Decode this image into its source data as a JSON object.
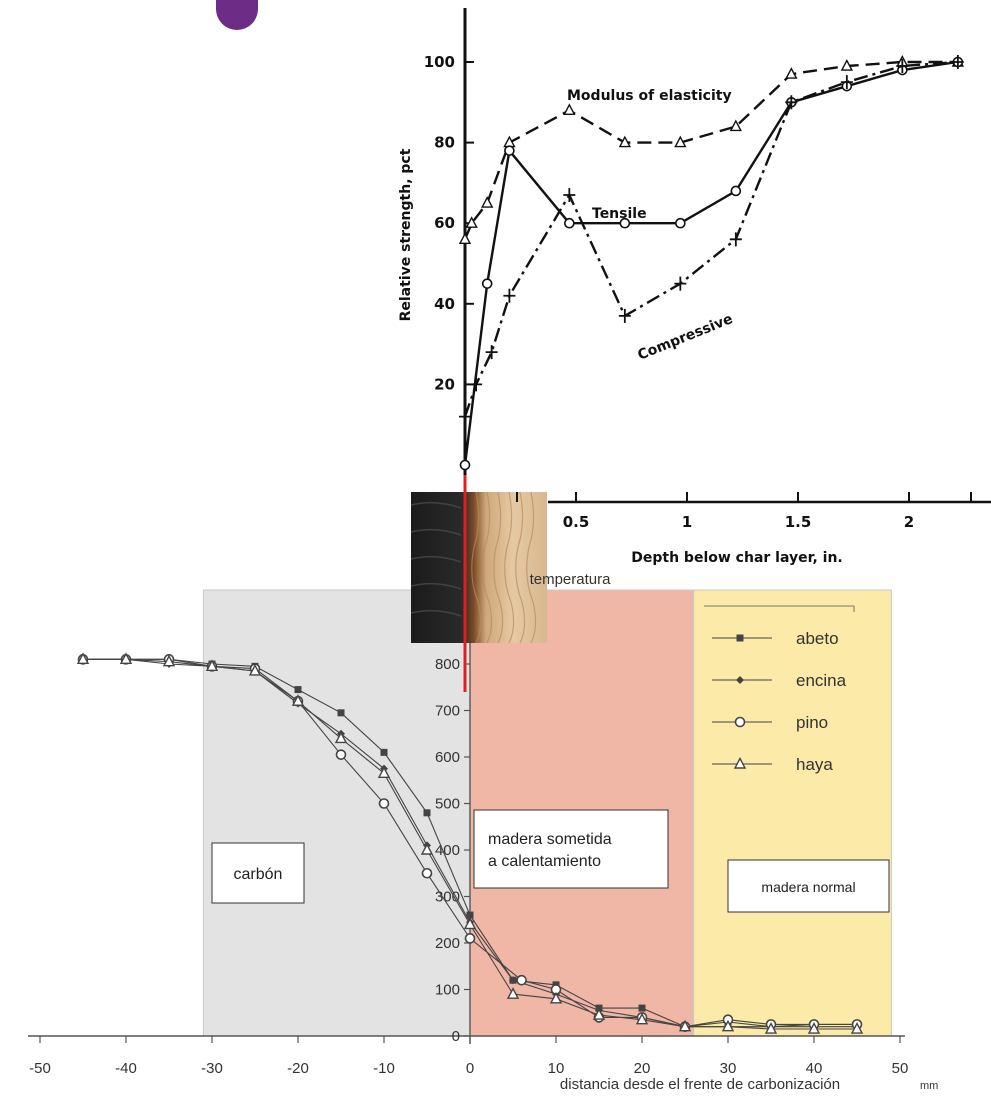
{
  "chart_data": [
    {
      "type": "line",
      "ylabel": "Relative strength, pct",
      "xlabel": "Depth below char layer, in.",
      "x_ticks": [
        "0.5",
        "1",
        "1.5",
        "2"
      ],
      "y_ticks": [
        "20",
        "40",
        "60",
        "80",
        "100"
      ],
      "xlim": [
        0,
        2.3
      ],
      "ylim": [
        0,
        110
      ],
      "grid": false,
      "colors": {
        "line": "#111111"
      },
      "series": [
        {
          "name": "Modulus of elasticity",
          "marker": "triangle",
          "dash": "dashed",
          "x": [
            0,
            0.03,
            0.1,
            0.2,
            0.47,
            0.72,
            0.97,
            1.22,
            1.47,
            1.72,
            1.97,
            2.22
          ],
          "y": [
            56,
            60,
            65,
            80,
            88,
            80,
            80,
            84,
            97,
            99,
            100,
            100
          ]
        },
        {
          "name": "Tensile",
          "marker": "circle",
          "dash": "solid",
          "x": [
            0,
            0.1,
            0.2,
            0.47,
            0.72,
            0.97,
            1.22,
            1.47,
            1.72,
            1.97,
            2.22
          ],
          "y": [
            0,
            45,
            78,
            60,
            60,
            60,
            68,
            90,
            94,
            98,
            100
          ]
        },
        {
          "name": "Compressive",
          "marker": "plus",
          "dash": "dashdot",
          "x": [
            0,
            0.05,
            0.12,
            0.2,
            0.47,
            0.72,
            0.97,
            1.22,
            1.47,
            1.72,
            1.97,
            2.22
          ],
          "y": [
            12,
            20,
            28,
            42,
            67,
            37,
            45,
            56,
            90,
            95,
            99,
            100
          ]
        }
      ]
    },
    {
      "type": "line",
      "title": "temperatura",
      "xlabel": "distancia desde el frente de carbonización",
      "xunit": "mm",
      "x_ticks": [
        "-50",
        "-40",
        "-30",
        "-20",
        "-10",
        "0",
        "10",
        "20",
        "30",
        "40",
        "50"
      ],
      "y_ticks": [
        "0",
        "100",
        "200",
        "300",
        "400",
        "500",
        "600",
        "700",
        "800"
      ],
      "xlim": [
        -50,
        50
      ],
      "ylim": [
        0,
        850
      ],
      "legend_position": "top-right",
      "regions": [
        {
          "label": "carbón",
          "x_range": [
            -31,
            0
          ],
          "color": "#e3e3e3"
        },
        {
          "label": "madera sometida\na calentamiento",
          "x_range": [
            0,
            26
          ],
          "color": "#f0b6a6"
        },
        {
          "label": "madera normal",
          "x_range": [
            26,
            49
          ],
          "color": "#fbeaa8"
        }
      ],
      "colors": {
        "line": "#444444",
        "burn_front": "#e02020"
      },
      "series": [
        {
          "name": "abeto",
          "marker": "square",
          "x": [
            -45,
            -40,
            -35,
            -30,
            -25,
            -20,
            -15,
            -10,
            -5,
            0,
            5,
            10,
            15,
            20,
            25,
            30,
            35,
            40,
            45
          ],
          "y": [
            810,
            810,
            810,
            800,
            795,
            745,
            695,
            610,
            480,
            260,
            120,
            110,
            60,
            60,
            20,
            20,
            20,
            20,
            20
          ]
        },
        {
          "name": "encina",
          "marker": "diamond",
          "x": [
            -45,
            -40,
            -35,
            -30,
            -25,
            -20,
            -15,
            -10,
            -5,
            0,
            5,
            10,
            15,
            20,
            25,
            30,
            35,
            40,
            45
          ],
          "y": [
            810,
            810,
            800,
            795,
            785,
            715,
            650,
            575,
            410,
            245,
            120,
            90,
            55,
            40,
            20,
            30,
            20,
            25,
            25
          ]
        },
        {
          "name": "pino",
          "marker": "circle",
          "x": [
            -45,
            -40,
            -35,
            -30,
            -25,
            -20,
            -15,
            -10,
            -5,
            0,
            6,
            10,
            15,
            20,
            25,
            30,
            35,
            40,
            45
          ],
          "y": [
            810,
            810,
            810,
            795,
            790,
            720,
            605,
            500,
            350,
            210,
            120,
            100,
            40,
            40,
            20,
            35,
            25,
            25,
            25
          ]
        },
        {
          "name": "haya",
          "marker": "triangle",
          "x": [
            -45,
            -40,
            -35,
            -30,
            -25,
            -20,
            -15,
            -10,
            -5,
            0,
            5,
            10,
            15,
            20,
            25,
            30,
            35,
            40,
            45
          ],
          "y": [
            810,
            810,
            805,
            795,
            785,
            720,
            640,
            565,
            400,
            240,
            90,
            80,
            45,
            35,
            20,
            20,
            15,
            15,
            15
          ]
        }
      ]
    }
  ]
}
